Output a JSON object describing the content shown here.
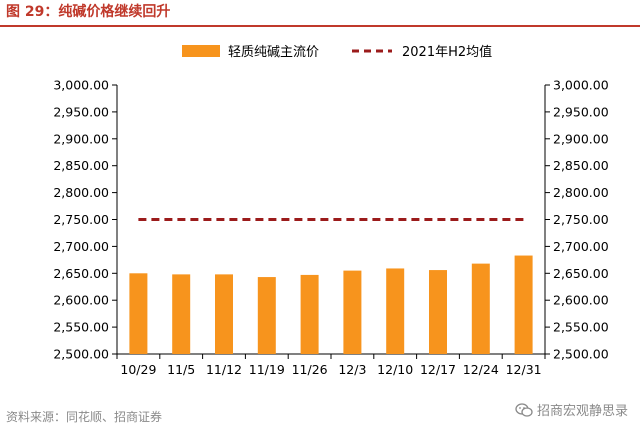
{
  "figure": {
    "title": "图 29：纯碱价格继续回升",
    "source": "资料来源：同花顺、招商证券",
    "watermark": "招商宏观静思录"
  },
  "colors": {
    "bar": "#F7941D",
    "reference_line": "#9B1B1B",
    "title": "#C0392B",
    "axis": "#000000"
  },
  "chart_data": {
    "type": "bar",
    "title": "",
    "xlabel": "",
    "ylabel": "",
    "categories": [
      "10/29",
      "11/5",
      "11/12",
      "11/19",
      "11/26",
      "12/3",
      "12/10",
      "12/17",
      "12/24",
      "12/31"
    ],
    "series": [
      {
        "name": "轻质纯碱主流价",
        "type": "bar",
        "values": [
          2650,
          2648,
          2648,
          2643,
          2647,
          2655,
          2659,
          2656,
          2668,
          2683
        ]
      },
      {
        "name": "2021年H2均值",
        "type": "line",
        "style": "dashed",
        "values": [
          2750,
          2750,
          2750,
          2750,
          2750,
          2750,
          2750,
          2750,
          2750,
          2750
        ]
      }
    ],
    "ylim": [
      2500,
      3000
    ],
    "yticks": [
      "2,500.00",
      "2,550.00",
      "2,600.00",
      "2,650.00",
      "2,700.00",
      "2,750.00",
      "2,800.00",
      "2,850.00",
      "2,900.00",
      "2,950.00",
      "3,000.00"
    ],
    "secondary_axis": true,
    "grid": false,
    "legend_position": "top"
  }
}
